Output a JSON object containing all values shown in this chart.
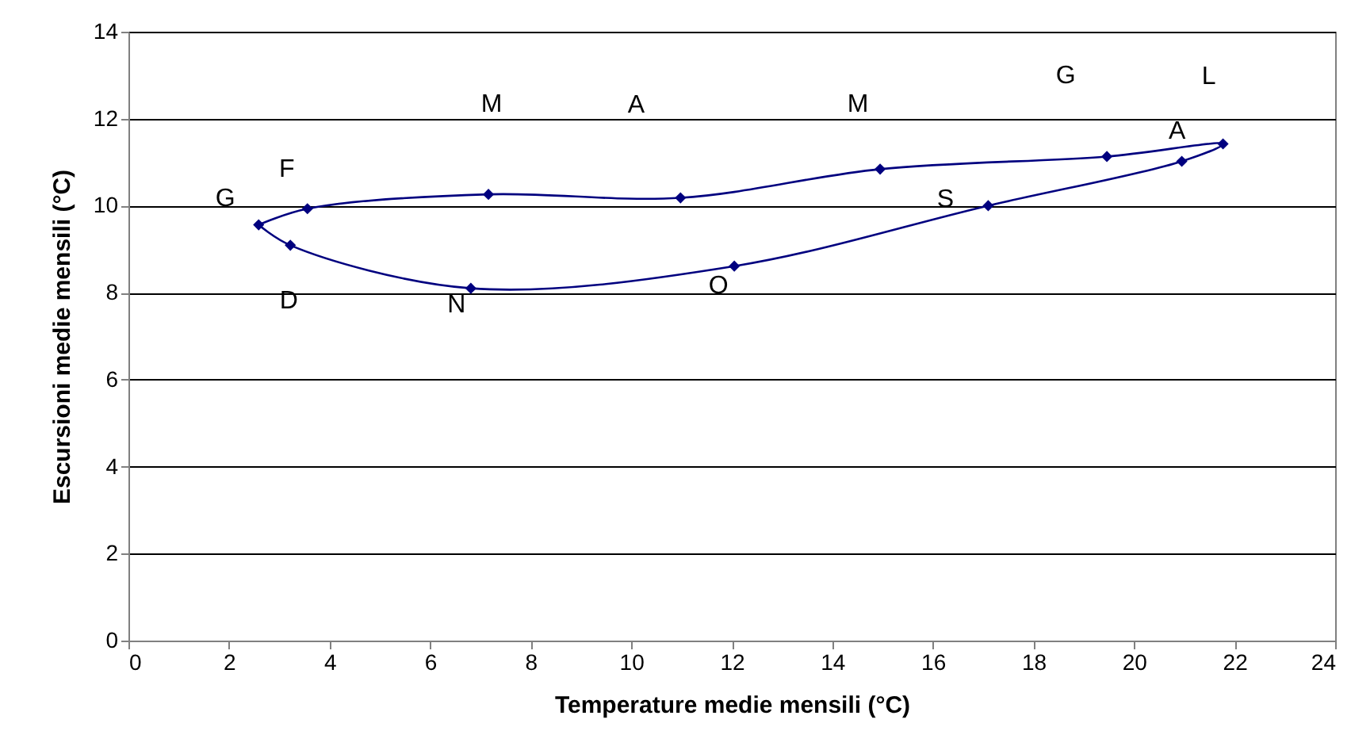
{
  "chart_data": {
    "type": "scatter",
    "xlabel": "Temperature medie mensili (°C)",
    "ylabel": "Escursioni medie mensili (°C)",
    "x": [
      2.59,
      3.56,
      7.16,
      10.98,
      14.95,
      19.46,
      21.77,
      20.95,
      17.1,
      12.05,
      6.81,
      3.22
    ],
    "series": [
      {
        "color": "#00007f",
        "values": [
          9.56,
          9.93,
          10.26,
          10.18,
          10.84,
          11.13,
          11.42,
          11.02,
          10.0,
          8.61,
          8.1,
          9.09
        ]
      }
    ],
    "xlim": [
      0,
      24
    ],
    "xticks": [
      0,
      2,
      4,
      6,
      8,
      10,
      12,
      14,
      16,
      18,
      20,
      22,
      24
    ],
    "ylim": [
      0,
      14
    ],
    "yticks": [
      0,
      2,
      4,
      6,
      8,
      10,
      12,
      14
    ],
    "grid": "y",
    "marker": "diamond",
    "line_style": "solid",
    "annotations": [
      "G",
      "F",
      "M",
      "A",
      "M",
      "G",
      "L",
      "A",
      "S",
      "O",
      "N",
      "D"
    ]
  }
}
